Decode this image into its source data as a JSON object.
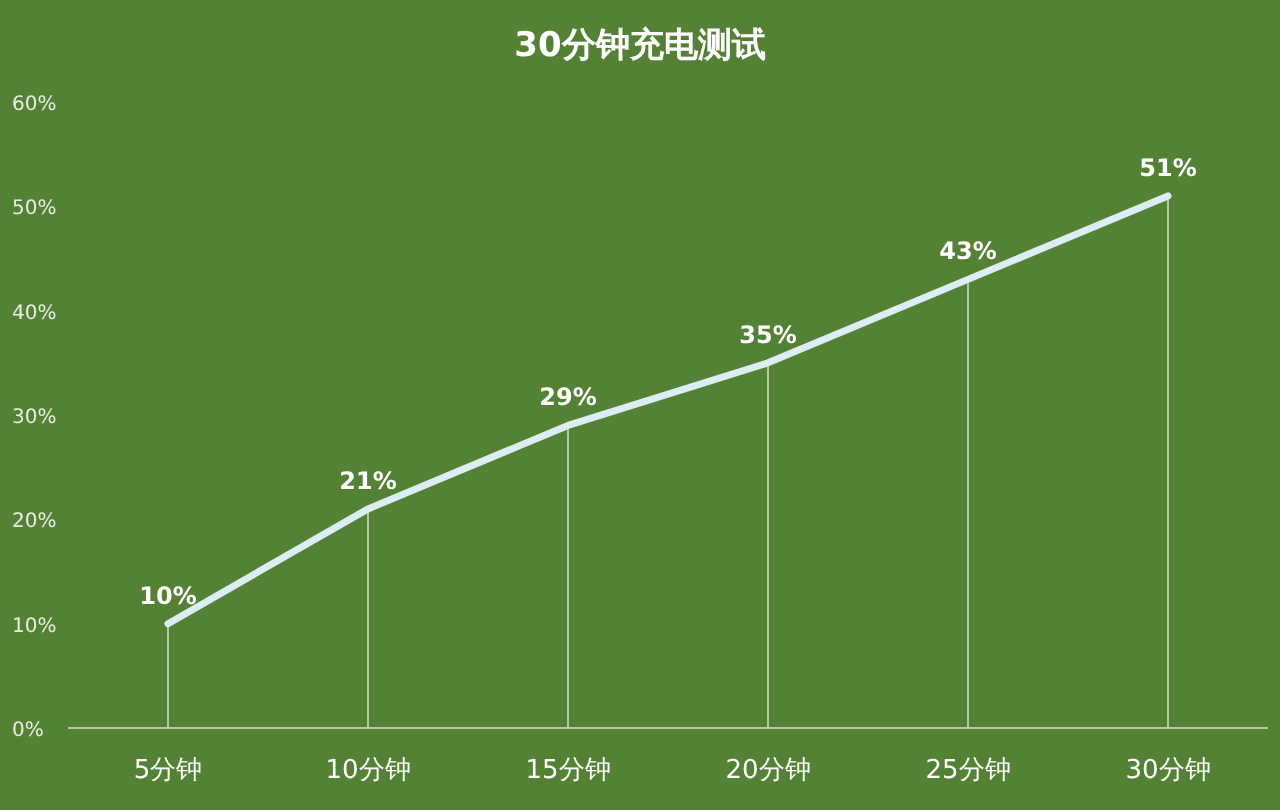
{
  "chart_data": {
    "type": "line",
    "title": "30分钟充电测试",
    "categories": [
      "5分钟",
      "10分钟",
      "15分钟",
      "20分钟",
      "25分钟",
      "30分钟"
    ],
    "values": [
      10,
      21,
      29,
      35,
      43,
      51
    ],
    "value_labels": [
      "10%",
      "21%",
      "29%",
      "35%",
      "43%",
      "51%"
    ],
    "color": "#dbeef4",
    "ylim": [
      0,
      60
    ],
    "yticks": [
      {
        "value": 0,
        "label": "0%"
      },
      {
        "value": 10,
        "label": "10%"
      },
      {
        "value": 20,
        "label": "20%"
      },
      {
        "value": 30,
        "label": "30%"
      },
      {
        "value": 40,
        "label": "40%"
      },
      {
        "value": 50,
        "label": "50%"
      },
      {
        "value": 60,
        "label": "60%"
      }
    ]
  }
}
